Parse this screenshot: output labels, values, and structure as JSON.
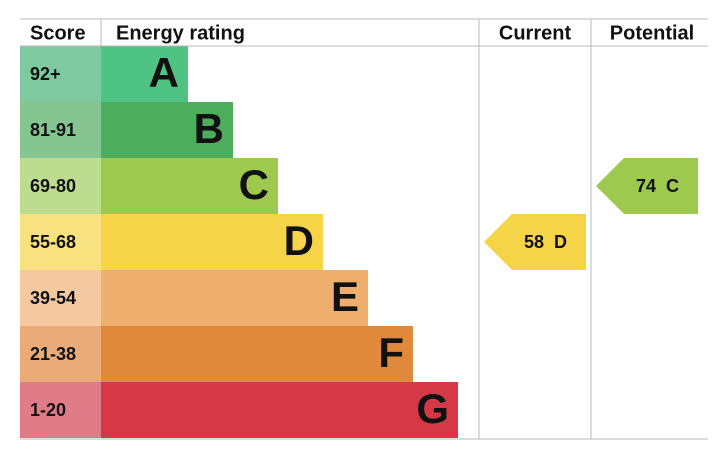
{
  "header": {
    "score": "Score",
    "rating": "Energy rating",
    "current": "Current",
    "potential": "Potential"
  },
  "bands": [
    {
      "score": "92+",
      "letter": "A",
      "color": "#4fc384",
      "score_color": "#7fc9a0"
    },
    {
      "score": "81-91",
      "letter": "B",
      "color": "#4cad5d",
      "score_color": "#86c58f"
    },
    {
      "score": "69-80",
      "letter": "C",
      "color": "#9dc94e",
      "score_color": "#bddc8f"
    },
    {
      "score": "55-68",
      "letter": "D",
      "color": "#f5d547",
      "score_color": "#f8e280"
    },
    {
      "score": "39-54",
      "letter": "E",
      "color": "#eeae6e",
      "score_color": "#f4c9a1"
    },
    {
      "score": "21-38",
      "letter": "F",
      "color": "#e0893b",
      "score_color": "#ebab78"
    },
    {
      "score": "1-20",
      "letter": "G",
      "color": "#d73848",
      "score_color": "#e07b88"
    }
  ],
  "current": {
    "value": 58,
    "letter": "D"
  },
  "potential": {
    "value": 74,
    "letter": "C"
  }
}
